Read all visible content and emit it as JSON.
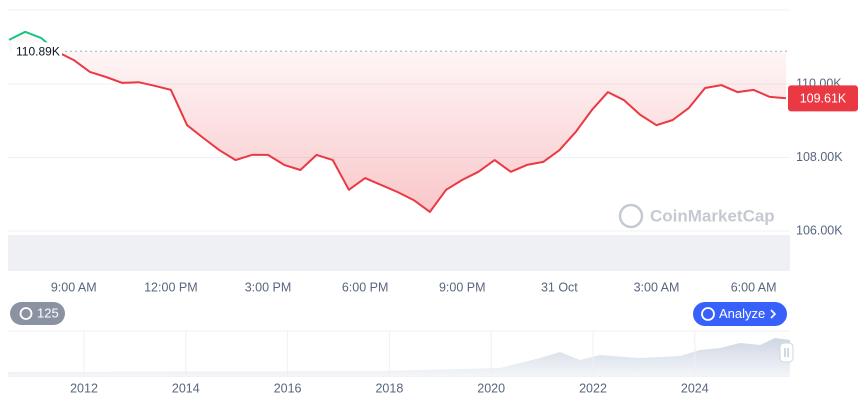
{
  "chart_data": {
    "type": "line",
    "categories": [
      null,
      null,
      null,
      null,
      "9:00 AM",
      null,
      null,
      null,
      null,
      null,
      "12:00 PM",
      null,
      null,
      null,
      null,
      null,
      "3:00 PM",
      null,
      null,
      null,
      null,
      null,
      "6:00 PM",
      null,
      null,
      null,
      null,
      null,
      "9:00 PM",
      null,
      null,
      null,
      null,
      null,
      "31 Oct",
      null,
      null,
      null,
      null,
      null,
      "3:00 AM",
      null,
      null,
      null,
      null,
      null,
      "6:00 AM",
      null,
      null
    ],
    "series": [
      {
        "color": "#ea3943",
        "up_color": "#16c784",
        "values": [
          111200,
          111420,
          111250,
          110870,
          110650,
          110330,
          110190,
          110030,
          110050,
          109950,
          109840,
          108880,
          108530,
          108200,
          107930,
          108070,
          108070,
          107800,
          107660,
          108070,
          107930,
          107120,
          107440,
          107250,
          107060,
          106840,
          106520,
          107120,
          107390,
          107610,
          107930,
          107610,
          107800,
          107880,
          108200,
          108690,
          109290,
          109780,
          109560,
          109160,
          108880,
          109020,
          109350,
          109890,
          109970,
          109780,
          109840,
          109650,
          109610
        ]
      }
    ],
    "ylim": [
      106000,
      112000
    ],
    "yticks": [
      {
        "value": 106000,
        "label": "106.00K"
      },
      {
        "value": 108000,
        "label": "108.00K"
      },
      {
        "value": 110000,
        "label": "110.00K"
      }
    ],
    "reference_line": {
      "value": 110890,
      "label": "110.89K"
    },
    "price_tag": {
      "value": 109610,
      "label": "109.61K"
    },
    "grid": true
  },
  "watermark": "CoinMarketCap",
  "history_badge": "125",
  "analyze_button": "Analyze",
  "navigator": {
    "years": [
      "2012",
      "2014",
      "2016",
      "2018",
      "2020",
      "2022",
      "2024"
    ]
  }
}
